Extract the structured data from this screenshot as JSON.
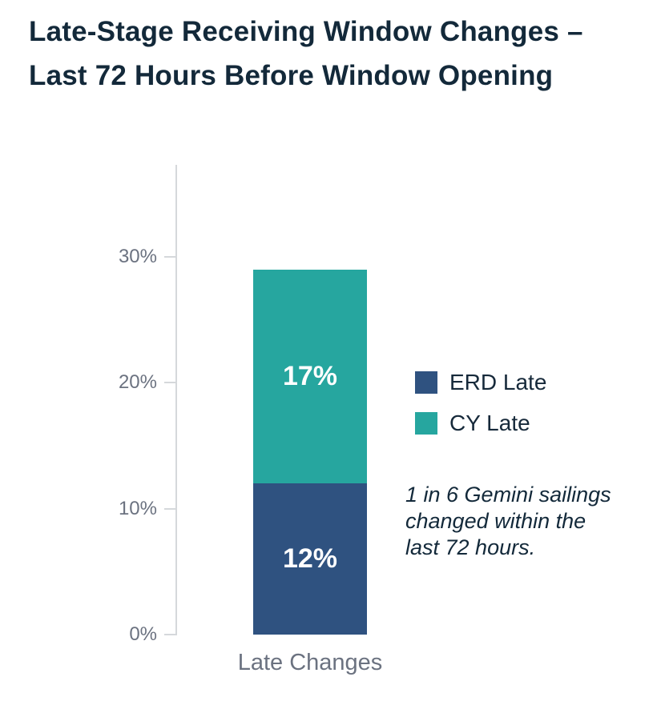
{
  "title": {
    "line1": "Late-Stage Receiving Window Changes –",
    "line2": "Last 72 Hours Before Window Opening",
    "color": "#13293a"
  },
  "chart_data": {
    "type": "bar",
    "stacked": true,
    "categories": [
      "Late Changes"
    ],
    "series": [
      {
        "name": "ERD Late",
        "value": 12,
        "label": "12%",
        "color": "#2f5280"
      },
      {
        "name": "CY Late",
        "value": 17,
        "label": "17%",
        "color": "#26a69f"
      }
    ],
    "xlabel": "",
    "ylabel": "",
    "yticks": [
      0,
      10,
      20,
      30
    ],
    "ytick_labels": [
      "0%",
      "10%",
      "20%",
      "30%"
    ],
    "ylim": [
      0,
      37.3
    ],
    "grid": false,
    "legend_position": "right-of-bar",
    "axis_color": "#d5d8db",
    "tick_text_color": "#6b7280",
    "bar_label_color": "#ffffff"
  },
  "annotation": {
    "lines": [
      "1 in 6 Gemini sailings",
      "changed within the",
      "last 72 hours."
    ],
    "text": "1 in 6 Gemini sailings changed within the last 72 hours."
  }
}
